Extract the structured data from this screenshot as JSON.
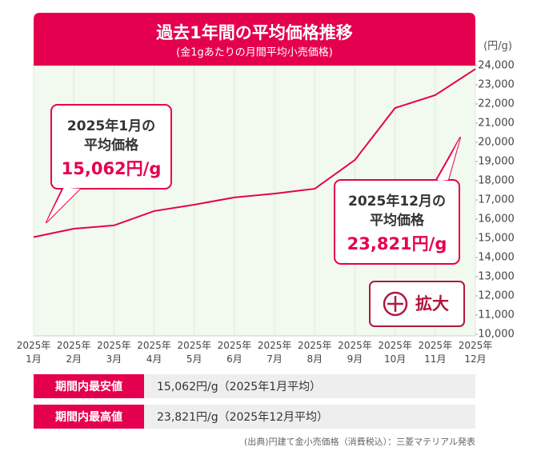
{
  "chart_data": {
    "type": "line",
    "title": "過去1年間の平均価格推移",
    "subtitle": "(金1gあたりの月間平均小売価格)",
    "y_unit": "(円/g)",
    "categories": [
      "2025年1月",
      "2025年2月",
      "2025年3月",
      "2025年4月",
      "2025年5月",
      "2025年6月",
      "2025年7月",
      "2025年8月",
      "2025年9月",
      "2025年10月",
      "2025年11月",
      "2025年12月"
    ],
    "series": [
      {
        "name": "平均価格",
        "color": "#e5004f",
        "values": [
          15062,
          15500,
          15670,
          16420,
          16750,
          17130,
          17330,
          17580,
          19080,
          21790,
          22460,
          23821
        ]
      }
    ],
    "ylim": [
      10000,
      24000
    ],
    "yticks": [
      {
        "value": 10000,
        "label": "10,000"
      },
      {
        "value": 11000,
        "label": "11,000"
      },
      {
        "value": 12000,
        "label": "12,000"
      },
      {
        "value": 13000,
        "label": "13,000"
      },
      {
        "value": 14000,
        "label": "14,000"
      },
      {
        "value": 15000,
        "label": "15,000"
      },
      {
        "value": 16000,
        "label": "16,000"
      },
      {
        "value": 17000,
        "label": "17,000"
      },
      {
        "value": 18000,
        "label": "18,000"
      },
      {
        "value": 19000,
        "label": "19,000"
      },
      {
        "value": 20000,
        "label": "20,000"
      },
      {
        "value": 21000,
        "label": "21,000"
      },
      {
        "value": 22000,
        "label": "22,000"
      },
      {
        "value": 23000,
        "label": "23,000"
      },
      {
        "value": 24000,
        "label": "24,000"
      }
    ],
    "grid": "x",
    "annotations": [
      {
        "lines": [
          "2025年1月の",
          "平均価格"
        ],
        "value": 15062,
        "value_label": "15,062円/g"
      },
      {
        "lines": [
          "2025年12月の",
          "平均価格"
        ],
        "value": 23821,
        "value_label": "23,821円/g"
      }
    ]
  },
  "button": {
    "label": "拡大"
  },
  "summary": {
    "rows": [
      {
        "label": "期間内最安値",
        "value": "15,062円/g（2025年1月平均）"
      },
      {
        "label": "期間内最高値",
        "value": "23,821円/g（2025年12月平均）"
      }
    ]
  },
  "source": "(出典)円建て金小売価格（消費税込）：三菱マテリアル発表"
}
